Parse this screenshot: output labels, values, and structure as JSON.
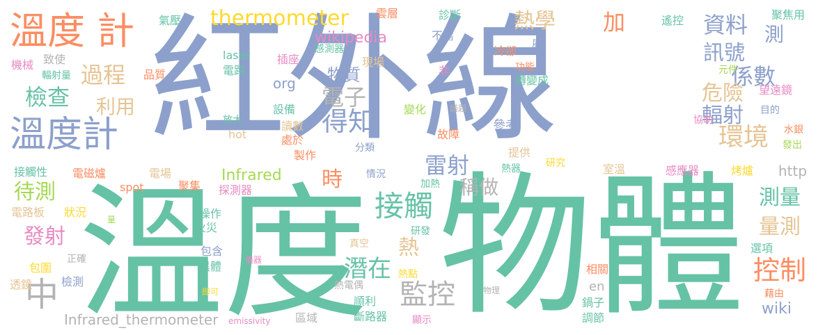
{
  "palette": {
    "blue": "#8ca0cb",
    "green": "#66c2a5",
    "orange": "#fc8d62",
    "pink": "#e78ac3",
    "lime": "#a6d854",
    "yellow": "#ffd92f",
    "tan": "#e5c494",
    "gray": "#b3b3b3"
  },
  "words": [
    {
      "t": "紅外線",
      "c": "blue"
    },
    {
      "t": "溫度",
      "c": "green"
    },
    {
      "t": "物體",
      "c": "green"
    },
    {
      "t": "溫度 計",
      "c": "orange"
    },
    {
      "t": "溫度計",
      "c": "blue"
    },
    {
      "t": "thermometer",
      "c": "yellow"
    },
    {
      "t": "熱學",
      "c": "tan"
    },
    {
      "t": "加",
      "c": "orange"
    },
    {
      "t": "資料",
      "c": "blue"
    },
    {
      "t": "測",
      "c": "blue"
    },
    {
      "t": "訊號",
      "c": "blue"
    },
    {
      "t": "係數",
      "c": "blue"
    },
    {
      "t": "過程",
      "c": "tan"
    },
    {
      "t": "物質",
      "c": "blue"
    },
    {
      "t": "檢查",
      "c": "green"
    },
    {
      "t": "利用",
      "c": "tan"
    },
    {
      "t": "危險",
      "c": "tan"
    },
    {
      "t": "輻射",
      "c": "blue"
    },
    {
      "t": "環境",
      "c": "tan"
    },
    {
      "t": "電子",
      "c": "gray"
    },
    {
      "t": "得知",
      "c": "blue"
    },
    {
      "t": "雷射",
      "c": "blue"
    },
    {
      "t": "稱做",
      "c": "gray"
    },
    {
      "t": "接觸",
      "c": "green"
    },
    {
      "t": "待測",
      "c": "lime"
    },
    {
      "t": "時",
      "c": "orange"
    },
    {
      "t": "測量",
      "c": "green"
    },
    {
      "t": "量測",
      "c": "tan"
    },
    {
      "t": "控制",
      "c": "orange"
    },
    {
      "t": "發射",
      "c": "pink"
    },
    {
      "t": "熱",
      "c": "tan"
    },
    {
      "t": "潛在",
      "c": "green"
    },
    {
      "t": "監控",
      "c": "gray"
    },
    {
      "t": "中",
      "c": "gray"
    },
    {
      "t": "Infrared",
      "c": "lime"
    },
    {
      "t": "Infrared_thermometer",
      "c": "gray"
    },
    {
      "t": "wikipedia",
      "c": "pink"
    },
    {
      "t": "org",
      "c": "blue"
    },
    {
      "t": "wiki",
      "c": "blue"
    },
    {
      "t": "en",
      "c": "gray"
    },
    {
      "t": "http",
      "c": "gray"
    },
    {
      "t": "laser",
      "c": "green"
    },
    {
      "t": "hot",
      "c": "tan"
    },
    {
      "t": "spot",
      "c": "orange"
    },
    {
      "t": "emissivity",
      "c": "pink"
    },
    {
      "t": "氣壓",
      "c": "green"
    },
    {
      "t": "雲層",
      "c": "orange"
    },
    {
      "t": "診斷",
      "c": "green"
    },
    {
      "t": "遙控",
      "c": "green"
    },
    {
      "t": "聚焦用",
      "c": "green"
    },
    {
      "t": "不需",
      "c": "blue"
    },
    {
      "t": "感測器",
      "c": "green"
    },
    {
      "t": "插座",
      "c": "pink"
    },
    {
      "t": "現場",
      "c": "tan"
    },
    {
      "t": "冷卻",
      "c": "orange"
    },
    {
      "t": "處",
      "c": "blue"
    },
    {
      "t": "功能",
      "c": "orange"
    },
    {
      "t": "元件",
      "c": "lime"
    },
    {
      "t": "非",
      "c": "pink"
    },
    {
      "t": "轉變成",
      "c": "green"
    },
    {
      "t": "望遠鏡",
      "c": "pink"
    },
    {
      "t": "機械",
      "c": "pink"
    },
    {
      "t": "致使",
      "c": "gray"
    },
    {
      "t": "輻射量",
      "c": "green"
    },
    {
      "t": "品質",
      "c": "orange"
    },
    {
      "t": "電路",
      "c": "green"
    },
    {
      "t": "變化",
      "c": "lime"
    },
    {
      "t": "議題",
      "c": "gray"
    },
    {
      "t": "目的",
      "c": "blue"
    },
    {
      "t": "協助",
      "c": "pink"
    },
    {
      "t": "水銀",
      "c": "orange"
    },
    {
      "t": "發出",
      "c": "lime"
    },
    {
      "t": "參考",
      "c": "blue"
    },
    {
      "t": "故障",
      "c": "orange"
    },
    {
      "t": "放大",
      "c": "green"
    },
    {
      "t": "設備",
      "c": "green"
    },
    {
      "t": "讀數",
      "c": "tan"
    },
    {
      "t": "處於",
      "c": "orange"
    },
    {
      "t": "分類",
      "c": "blue"
    },
    {
      "t": "提供",
      "c": "tan"
    },
    {
      "t": "研究",
      "c": "yellow"
    },
    {
      "t": "熱器",
      "c": "green"
    },
    {
      "t": "製作",
      "c": "orange"
    },
    {
      "t": "室溫",
      "c": "tan"
    },
    {
      "t": "感應器",
      "c": "pink"
    },
    {
      "t": "烤爐",
      "c": "yellow"
    },
    {
      "t": "接觸性",
      "c": "green"
    },
    {
      "t": "電磁爐",
      "c": "orange"
    },
    {
      "t": "電場",
      "c": "tan"
    },
    {
      "t": "聚集",
      "c": "orange"
    },
    {
      "t": "探測器",
      "c": "pink"
    },
    {
      "t": "情況",
      "c": "blue"
    },
    {
      "t": "加熱",
      "c": "green"
    },
    {
      "t": "電路板",
      "c": "tan"
    },
    {
      "t": "狀況",
      "c": "yellow"
    },
    {
      "t": "量",
      "c": "lime"
    },
    {
      "t": "操作",
      "c": "green"
    },
    {
      "t": "火災",
      "c": "green"
    },
    {
      "t": "研發",
      "c": "green"
    },
    {
      "t": "真空",
      "c": "tan"
    },
    {
      "t": "包含",
      "c": "blue"
    },
    {
      "t": "黑體",
      "c": "green"
    },
    {
      "t": "儀器",
      "c": "pink"
    },
    {
      "t": "正確",
      "c": "gray"
    },
    {
      "t": "包圍",
      "c": "yellow"
    },
    {
      "t": "透鏡",
      "c": "tan"
    },
    {
      "t": "檢測",
      "c": "blue"
    },
    {
      "t": "熱點",
      "c": "yellow"
    },
    {
      "t": "熱電偶",
      "c": "gray"
    },
    {
      "t": "即可",
      "c": "yellow"
    },
    {
      "t": "順利",
      "c": "green"
    },
    {
      "t": "斷路器",
      "c": "green"
    },
    {
      "t": "區域",
      "c": "gray"
    },
    {
      "t": "顯示",
      "c": "pink"
    },
    {
      "t": "物理",
      "c": "gray"
    },
    {
      "t": "鍋子",
      "c": "green"
    },
    {
      "t": "調節",
      "c": "green"
    },
    {
      "t": "相關",
      "c": "orange"
    },
    {
      "t": "選項",
      "c": "green"
    },
    {
      "t": "藉由",
      "c": "orange"
    }
  ]
}
